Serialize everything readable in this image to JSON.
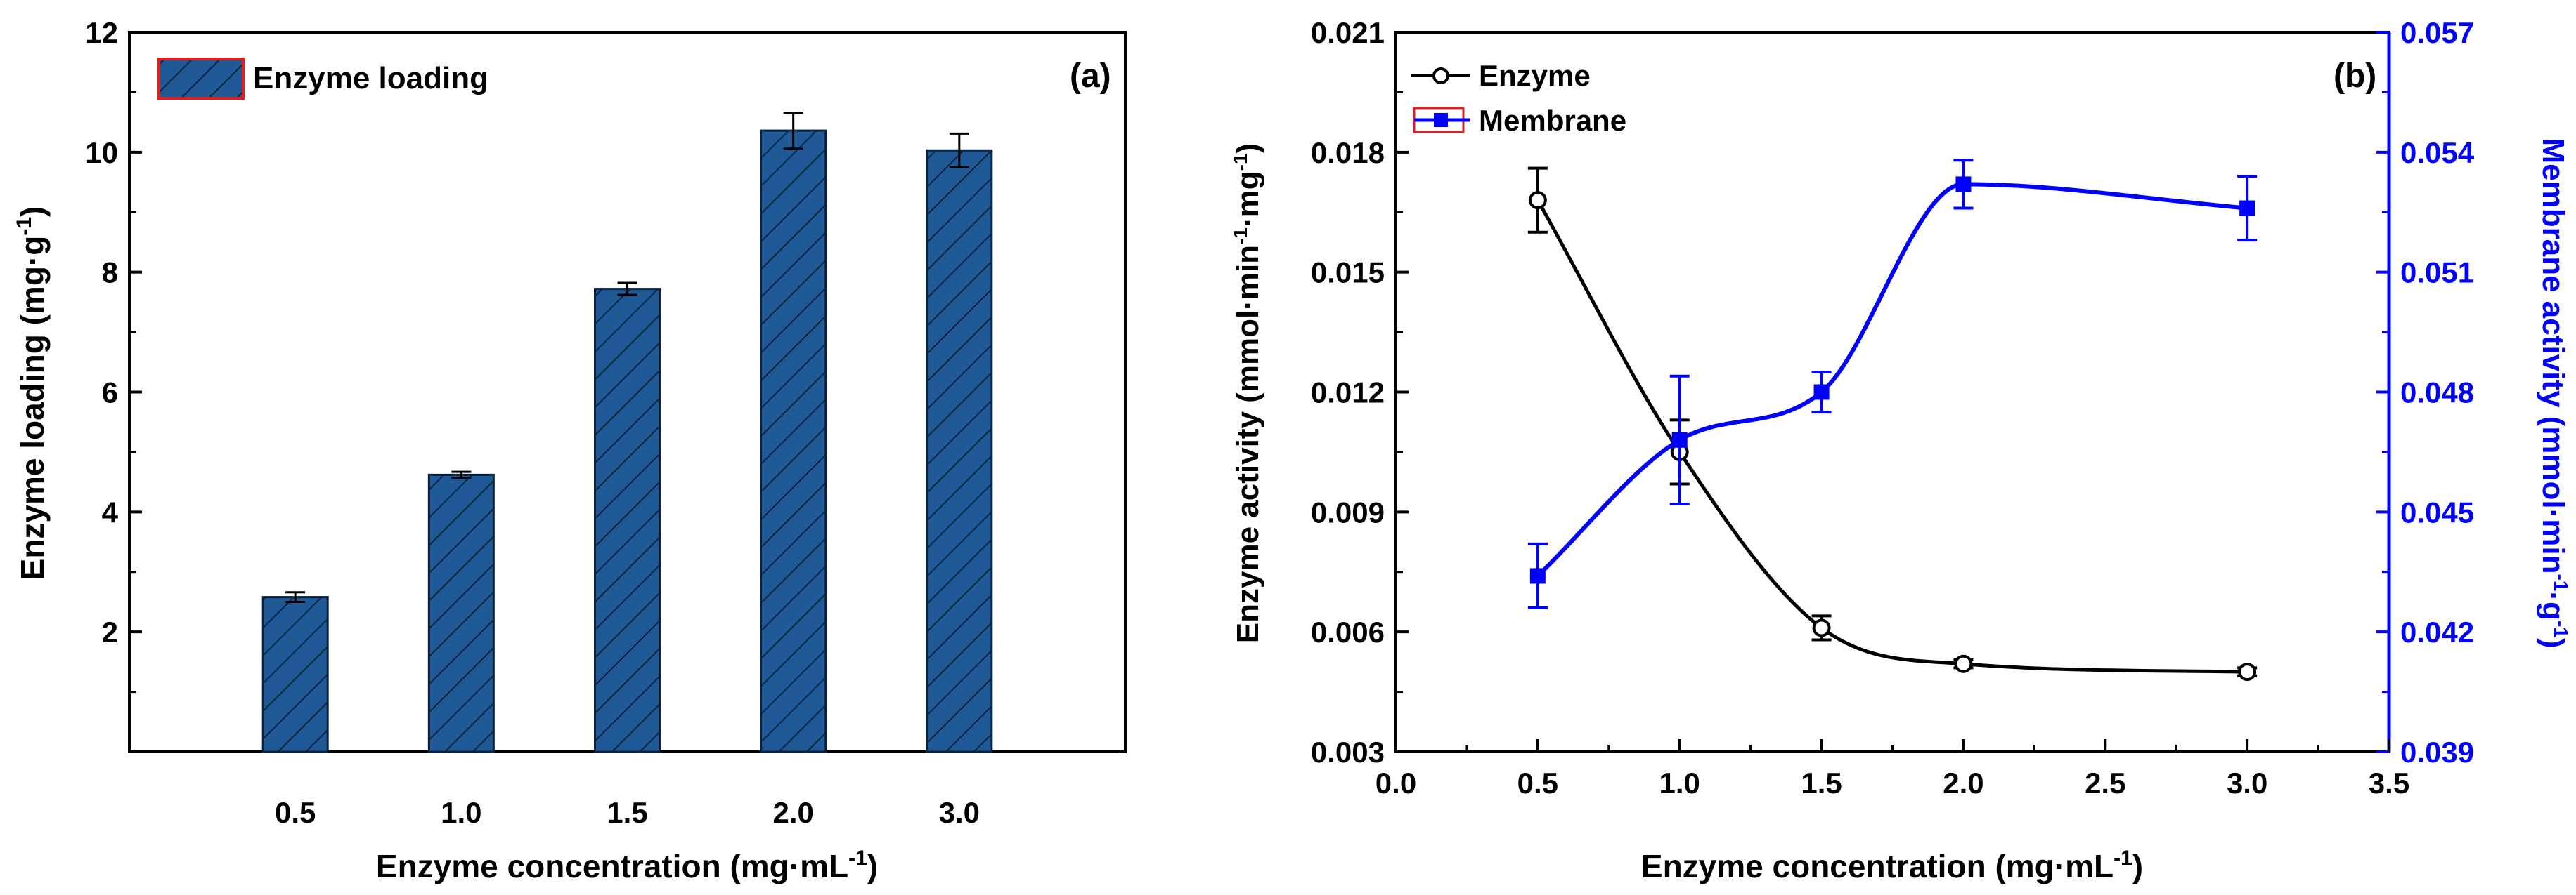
{
  "chart_data": [
    {
      "type": "bar",
      "panel_label": "(a)",
      "categories": [
        "0.5",
        "1.0",
        "1.5",
        "2.0",
        "3.0"
      ],
      "values": [
        2.58,
        4.62,
        7.72,
        10.36,
        10.03
      ],
      "errors": [
        0.08,
        0.05,
        0.1,
        0.3,
        0.28
      ],
      "ylim": [
        0,
        12
      ],
      "yticks": [
        "2",
        "4",
        "6",
        "8",
        "10",
        "12"
      ],
      "ylabel": "Enzyme loading (mg·g",
      "ylabel_sup": "-1",
      "ylabel_close": ")",
      "xlabel": "Enzyme concentration (mg·mL",
      "xlabel_sup": "-1",
      "xlabel_close": ")",
      "legend": "Enzyme loading",
      "bar_color": "#1f5a96",
      "hatch_color": "#0b2340"
    },
    {
      "type": "line",
      "panel_label": "(b)",
      "xlim": [
        0,
        3.5
      ],
      "xticks": [
        "0.0",
        "0.5",
        "1.0",
        "1.5",
        "2.0",
        "2.5",
        "3.0",
        "3.5"
      ],
      "ylim_left": [
        0.003,
        0.021
      ],
      "yticks_left": [
        "0.003",
        "0.006",
        "0.009",
        "0.012",
        "0.015",
        "0.018",
        "0.021"
      ],
      "ylim_right": [
        0.039,
        0.057
      ],
      "yticks_right": [
        "0.039",
        "0.042",
        "0.045",
        "0.048",
        "0.051",
        "0.054",
        "0.057"
      ],
      "ylabel_left": "Enzyme activity (mmol·min",
      "ylabel_left_sup1": "-1",
      "ylabel_left_mid": "·mg",
      "ylabel_left_sup2": "-1",
      "ylabel_left_close": ")",
      "ylabel_right": "Membrane activity (mmol·min",
      "ylabel_right_sup1": "-1",
      "ylabel_right_mid": "·g",
      "ylabel_right_sup2": "-1",
      "ylabel_right_close": ")",
      "xlabel": "Enzyme concentration (mg·mL",
      "xlabel_sup": "-1",
      "xlabel_close": ")",
      "series": [
        {
          "name": "Enzyme",
          "axis": "left",
          "color": "#000000",
          "marker": "open-circle",
          "x": [
            0.5,
            1.0,
            1.5,
            2.0,
            3.0
          ],
          "y": [
            0.0168,
            0.0105,
            0.0061,
            0.0052,
            0.005
          ],
          "err": [
            0.0008,
            0.0008,
            0.0003,
            0.0001,
            0.0001
          ]
        },
        {
          "name": "Membrane",
          "axis": "right",
          "color": "#0000ff",
          "marker": "square",
          "x": [
            0.5,
            1.0,
            1.5,
            2.0,
            3.0
          ],
          "y": [
            0.0434,
            0.0468,
            0.048,
            0.0532,
            0.0526
          ],
          "err": [
            0.0008,
            0.0016,
            0.0005,
            0.0006,
            0.0008
          ]
        }
      ]
    }
  ]
}
